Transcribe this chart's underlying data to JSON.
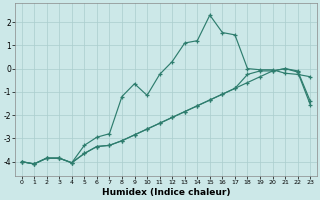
{
  "xlabel": "Humidex (Indice chaleur)",
  "background_color": "#cce8e8",
  "line_color": "#2e7d6e",
  "xlim": [
    -0.5,
    23.5
  ],
  "ylim": [
    -4.6,
    2.8
  ],
  "yticks": [
    -4,
    -3,
    -2,
    -1,
    0,
    1,
    2
  ],
  "xticks": [
    0,
    1,
    2,
    3,
    4,
    5,
    6,
    7,
    8,
    9,
    10,
    11,
    12,
    13,
    14,
    15,
    16,
    17,
    18,
    19,
    20,
    21,
    22,
    23
  ],
  "line1_x": [
    0,
    1,
    2,
    3,
    4,
    5,
    6,
    7,
    8,
    9,
    10,
    11,
    12,
    13,
    14,
    15,
    16,
    17,
    18,
    19,
    20,
    21,
    22,
    23
  ],
  "line1_y": [
    -4.0,
    -4.1,
    -3.85,
    -3.85,
    -4.05,
    -3.3,
    -2.95,
    -2.8,
    -1.2,
    -0.65,
    -1.15,
    -0.25,
    0.3,
    1.1,
    1.2,
    2.3,
    1.55,
    1.45,
    0.0,
    -0.05,
    -0.05,
    -0.2,
    -0.25,
    -0.35
  ],
  "line2_x": [
    0,
    1,
    2,
    3,
    4,
    5,
    6,
    7,
    8,
    9,
    10,
    11,
    12,
    13,
    14,
    15,
    16,
    17,
    18,
    19,
    20,
    21,
    22,
    23
  ],
  "line2_y": [
    -4.0,
    -4.1,
    -3.85,
    -3.85,
    -4.05,
    -3.65,
    -3.35,
    -3.3,
    -3.1,
    -2.85,
    -2.6,
    -2.35,
    -2.1,
    -1.85,
    -1.6,
    -1.35,
    -1.1,
    -0.85,
    -0.6,
    -0.35,
    -0.1,
    0.0,
    -0.1,
    -1.4
  ],
  "line3_x": [
    0,
    1,
    2,
    3,
    4,
    5,
    6,
    7,
    8,
    9,
    10,
    11,
    12,
    13,
    14,
    15,
    16,
    17,
    18,
    19,
    20,
    21,
    22,
    23
  ],
  "line3_y": [
    -4.0,
    -4.1,
    -3.85,
    -3.85,
    -4.05,
    -3.65,
    -3.35,
    -3.3,
    -3.1,
    -2.85,
    -2.6,
    -2.35,
    -2.1,
    -1.85,
    -1.6,
    -1.35,
    -1.1,
    -0.85,
    -0.25,
    -0.1,
    -0.1,
    0.0,
    -0.15,
    -1.55
  ]
}
